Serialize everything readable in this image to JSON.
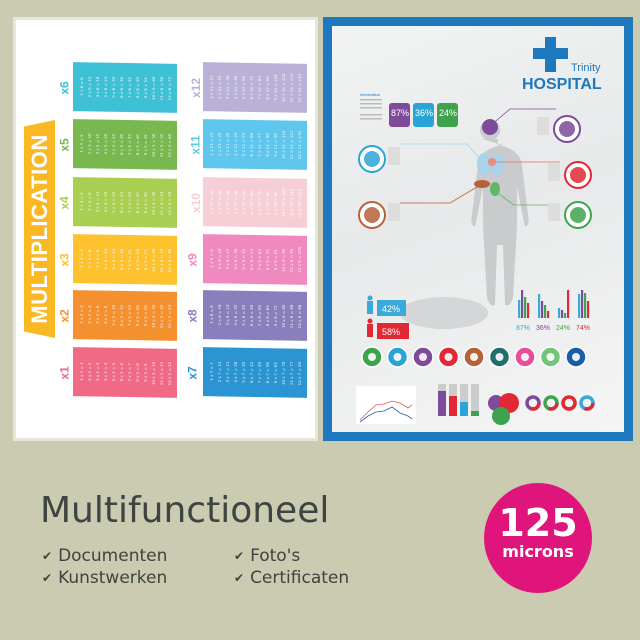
{
  "poster_left": {
    "title": "MULTIPLICATION",
    "banner_color": "#f9b824",
    "tables": [
      {
        "label": "x6",
        "factor": 6,
        "color": "#3ec0d6"
      },
      {
        "label": "x5",
        "factor": 5,
        "color": "#78b84f"
      },
      {
        "label": "x4",
        "factor": 4,
        "color": "#a8cf52"
      },
      {
        "label": "x3",
        "factor": 3,
        "color": "#fdc22e"
      },
      {
        "label": "x2",
        "factor": 2,
        "color": "#f5902e"
      },
      {
        "label": "x1",
        "factor": 1,
        "color": "#f06a85"
      },
      {
        "label": "x12",
        "factor": 12,
        "color": "#bab1d9"
      },
      {
        "label": "x11",
        "factor": 11,
        "color": "#5fc6ee"
      },
      {
        "label": "x10",
        "factor": 10,
        "color": "#f6cfd6"
      },
      {
        "label": "x9",
        "factor": 9,
        "color": "#f089c0"
      },
      {
        "label": "x8",
        "factor": 8,
        "color": "#8a7fbd"
      },
      {
        "label": "x7",
        "factor": 7,
        "color": "#2b95d3"
      }
    ]
  },
  "poster_right": {
    "brand_line1": "Trinity",
    "brand_line2": "HOSPITAL",
    "frame_color": "#1d78bd",
    "info_heading": "Information",
    "top_stats": [
      {
        "value": "87",
        "unit": "%",
        "color": "#7d4b99"
      },
      {
        "value": "36",
        "unit": "%",
        "color": "#2aa4d6"
      },
      {
        "value": "24",
        "unit": "%",
        "color": "#3fa34d"
      }
    ],
    "gender_stats": [
      {
        "icon": "male-icon",
        "value": "42%",
        "color": "#3aa9dc"
      },
      {
        "icon": "female-icon",
        "value": "58%",
        "color": "#e02934"
      }
    ],
    "bar_stats": [
      {
        "value": "87",
        "unit": "%",
        "color": "#3aa9dc"
      },
      {
        "value": "36",
        "unit": "%",
        "color": "#7d4b99"
      },
      {
        "value": "24",
        "unit": "%",
        "color": "#3fa34d"
      },
      {
        "value": "74",
        "unit": "%",
        "color": "#e02934"
      }
    ],
    "organ_icons": [
      "stomach-icon",
      "lungs-icon",
      "brain-icon",
      "heart-icon",
      "liver-icon",
      "tooth-icon",
      "heart-love-icon",
      "sleep-icon",
      "apple-icon"
    ]
  },
  "footer": {
    "headline": "Multifunctioneel",
    "features": [
      "Documenten",
      "Kunstwerken",
      "Foto's",
      "Certificaten"
    ],
    "check_icon": "check-icon",
    "badge_number": "125",
    "badge_unit": "microns",
    "badge_color": "#e0157c"
  }
}
